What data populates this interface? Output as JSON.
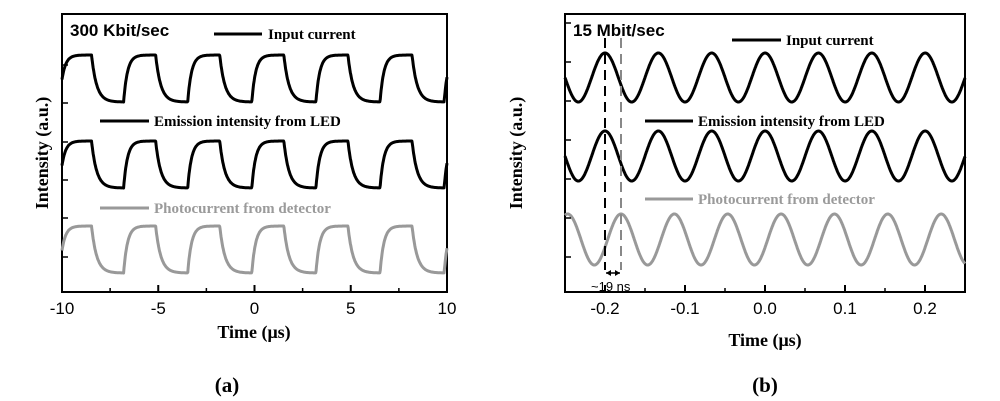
{
  "chart_data": [
    {
      "type": "line",
      "panel_label": "(a)",
      "rate_label": "300 Kbit/sec",
      "xlabel": "Time (μs)",
      "ylabel": "Intensity (a.u.)",
      "xlim": [
        -10,
        10
      ],
      "xticks": [
        "-10",
        "-5",
        "0",
        "5",
        "10"
      ],
      "xtick_values": [
        -10,
        -5,
        0,
        5,
        10
      ],
      "waveform": "square",
      "period_us": 3.33,
      "series": [
        {
          "name": "Input current",
          "color": "#000000",
          "signal": {
            "period": 3.33,
            "duty": 0.5,
            "rise_offset": -6.8
          }
        },
        {
          "name": "Emission intensity from LED",
          "color": "#000000",
          "signal": {
            "period": 3.33,
            "duty": 0.5,
            "rise_offset": -6.8
          }
        },
        {
          "name": "Photocurrent from detector",
          "color": "#999999",
          "signal": {
            "period": 3.33,
            "duty": 0.5,
            "rise_offset": -6.8
          }
        }
      ]
    },
    {
      "type": "line",
      "panel_label": "(b)",
      "rate_label": "15 Mbit/sec",
      "xlabel": "Time (μs)",
      "ylabel": "Intensity (a.u.)",
      "xlim": [
        -0.25,
        0.25
      ],
      "xticks": [
        "-0.2",
        "-0.1",
        "0.0",
        "0.1",
        "0.2"
      ],
      "xtick_values": [
        -0.2,
        -0.1,
        0.0,
        0.1,
        0.2
      ],
      "waveform": "sine",
      "period_us": 0.0667,
      "delay_annotation": "~19 ns",
      "delay_markers_us": [
        -0.2,
        -0.18
      ],
      "series": [
        {
          "name": "Input current",
          "color": "#000000",
          "signal": {
            "period": 0.0667,
            "peak_at": -0.2
          }
        },
        {
          "name": "Emission intensity from LED",
          "color": "#000000",
          "signal": {
            "period": 0.0667,
            "peak_at": -0.2
          }
        },
        {
          "name": "Photocurrent from detector",
          "color": "#999999",
          "signal": {
            "period": 0.0667,
            "peak_at": -0.18
          }
        }
      ]
    }
  ]
}
